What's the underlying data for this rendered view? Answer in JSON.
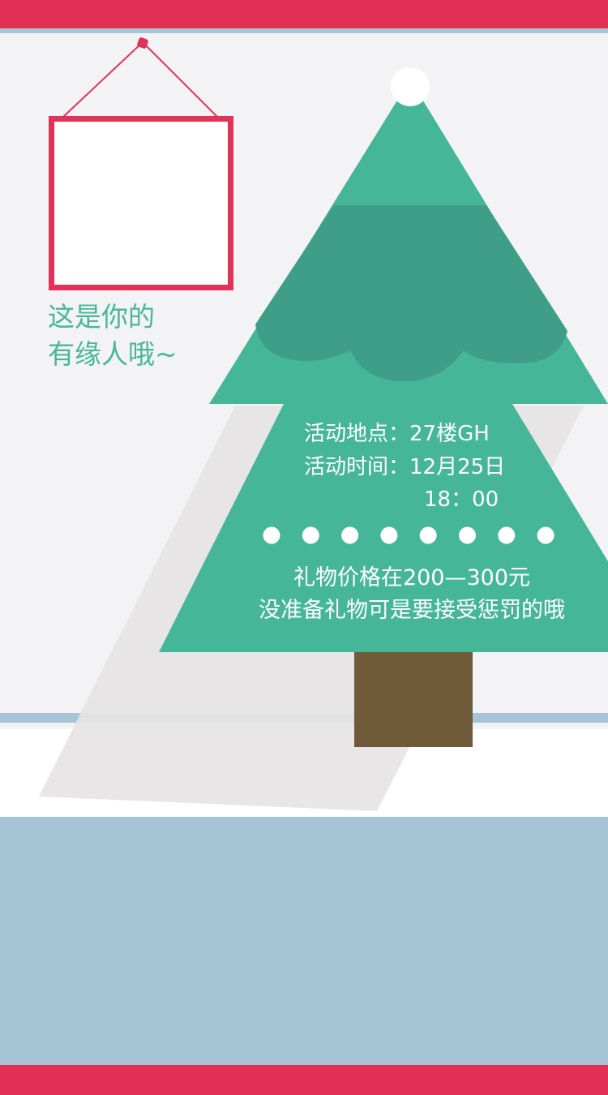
{
  "colors": {
    "accent_red": "#e32f53",
    "frame_red": "#e2325a",
    "light_blue": "#a6c4d5",
    "tree_green": "#46b699",
    "tree_dark_green": "#3f9e88",
    "trunk_brown": "#6f5a3a",
    "caption_green": "#48b799"
  },
  "caption": {
    "line1": "这是你的",
    "line2": "有缘人哦~"
  },
  "tree": {
    "location": "活动地点：27楼GH",
    "time": "活动时间：12月25日",
    "time_clock": "18：00",
    "gift_price": "礼物价格在200—300元",
    "gift_note": "没准备礼物可是要接受惩罚的哦",
    "ornament_dots": 8
  }
}
